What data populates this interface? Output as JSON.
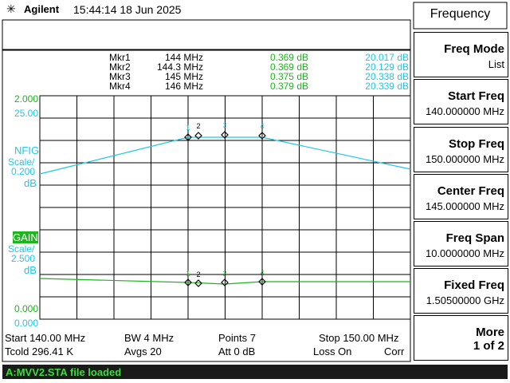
{
  "header": {
    "brand": "Agilent",
    "datetime": "15:44:14  18 Jun 2025"
  },
  "markers": {
    "rows": [
      [
        "Mkr1",
        "144 MHz",
        "0.369 dB",
        "20.017 dB"
      ],
      [
        "Mkr2",
        "144.3 MHz",
        "0.369 dB",
        "20.129 dB"
      ],
      [
        "Mkr3",
        "145 MHz",
        "0.375 dB",
        "20.338 dB"
      ],
      [
        "Mkr4",
        "146 MHz",
        "0.379 dB",
        "20.339 dB"
      ]
    ]
  },
  "axis_labels": {
    "gain_top": "2.000",
    "nfig_top": "25.00",
    "nfig_label": "NFIG",
    "nfig_scale": "Scale/",
    "nfig_scale_value": "0.200",
    "nfig_unit": "dB",
    "gain_label": "GAIN",
    "gain_scale": "Scale/",
    "gain_scale_value": "2.500",
    "gain_unit": "dB",
    "gain_bottom": "0.000",
    "nfig_bottom": "0.000"
  },
  "marker_tags": [
    "1",
    "2",
    "3",
    "4"
  ],
  "footer": {
    "rows": [
      [
        "Start 140.00 MHz",
        "BW 4 MHz",
        "Points 7",
        "Stop 150.00 MHz"
      ],
      [
        "Tcold 296.41 K",
        "Avgs 20",
        "Att 0 dB",
        "Loss On",
        "Corr"
      ]
    ]
  },
  "status": "A:MVV2.STA file loaded",
  "menu": {
    "title": "Frequency",
    "keys": [
      {
        "label": "Freq Mode",
        "value": "List"
      },
      {
        "label": "Start Freq",
        "value": "140.000000 MHz"
      },
      {
        "label": "Stop Freq",
        "value": "150.000000 MHz"
      },
      {
        "label": "Center Freq",
        "value": "145.000000 MHz"
      },
      {
        "label": "Freq Span",
        "value": "10.0000000 MHz"
      },
      {
        "label": "Fixed Freq",
        "value": "1.50500000 GHz"
      },
      {
        "label": "More",
        "value": "1 of 2"
      }
    ]
  }
}
